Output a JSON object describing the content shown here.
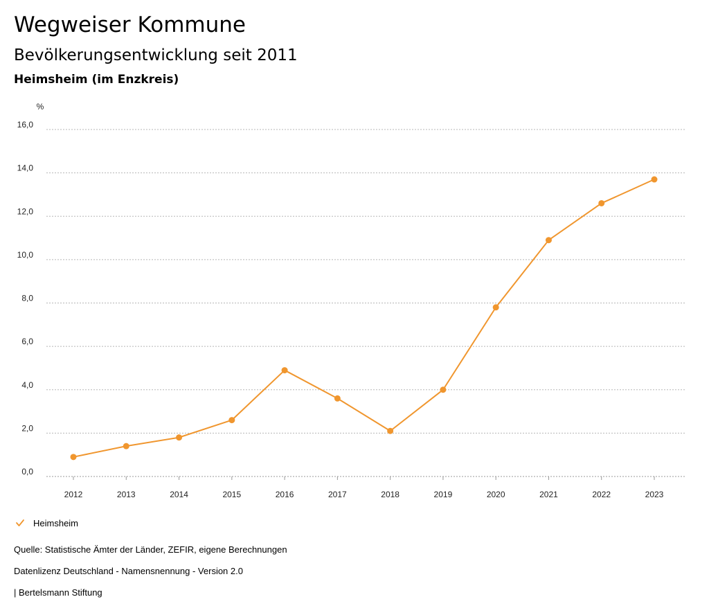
{
  "header": {
    "title": "Wegweiser Kommune",
    "subtitle": "Bevölkerungsentwicklung seit 2011",
    "region": "Heimsheim (im Enzkreis)"
  },
  "chart_data": {
    "type": "line",
    "title": "Bevölkerungsentwicklung seit 2011",
    "ylabel": "%",
    "xlabel": "",
    "ylim": [
      0,
      16
    ],
    "yticks": [
      0,
      2,
      4,
      6,
      8,
      10,
      12,
      14,
      16
    ],
    "ytick_labels": [
      "0,0",
      "2,0",
      "4,0",
      "6,0",
      "8,0",
      "10,0",
      "12,0",
      "14,0",
      "16,0"
    ],
    "grid": true,
    "categories": [
      "2012",
      "2013",
      "2014",
      "2015",
      "2016",
      "2017",
      "2018",
      "2019",
      "2020",
      "2021",
      "2022",
      "2023"
    ],
    "series": [
      {
        "name": "Heimsheim",
        "color": "#f0962e",
        "values": [
          0.9,
          1.4,
          1.8,
          2.6,
          4.9,
          3.6,
          2.1,
          4.0,
          7.8,
          10.9,
          12.6,
          13.7
        ]
      }
    ],
    "legend": "bottom-left"
  },
  "footer": {
    "source": "Quelle: Statistische Ämter der Länder, ZEFIR, eigene Berechnungen",
    "license": "Datenlizenz Deutschland - Namensnennung - Version 2.0",
    "publisher": "| Bertelsmann Stiftung"
  }
}
